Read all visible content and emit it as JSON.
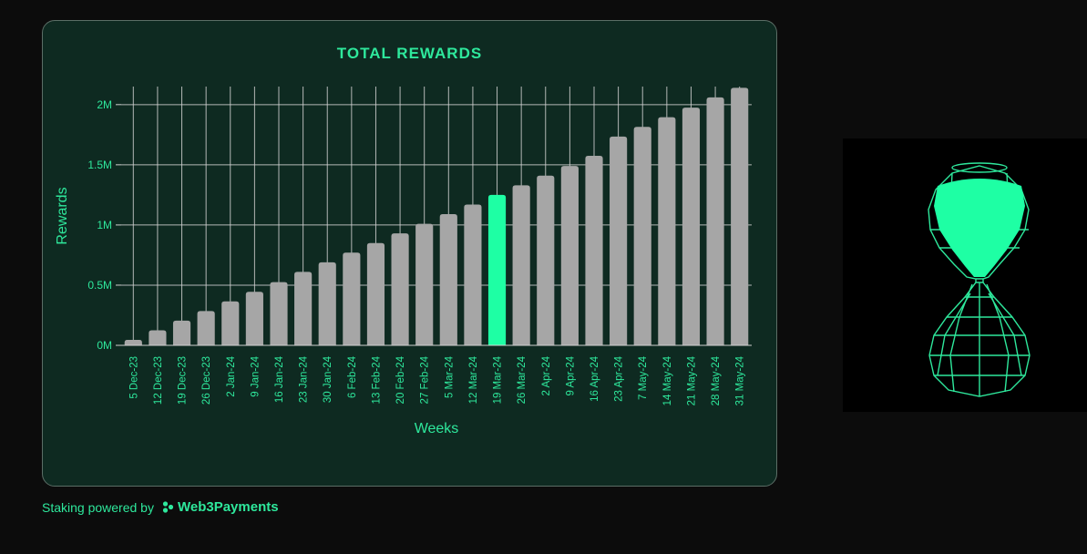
{
  "colors": {
    "accent": "#2ee89c",
    "bar": "#a6a6a6",
    "highlight_bar": "#1effa4",
    "card_bg": "#0e2a21",
    "page_bg": "#0c0c0c",
    "grid": "#d0d0d0"
  },
  "footer": {
    "powered_label": "Staking powered by",
    "brand_name": "Web3Payments",
    "brand_icon": "web3payments-logo-icon"
  },
  "illustration": {
    "icon": "hourglass-icon"
  },
  "chart_data": {
    "type": "bar",
    "title": "TOTAL REWARDS",
    "xlabel": "Weeks",
    "ylabel": "Rewards",
    "ylim": [
      0,
      2150000
    ],
    "yticks": [
      0,
      500000,
      1000000,
      1500000,
      2000000
    ],
    "ytick_labels": [
      "0M",
      "0.5M",
      "1M",
      "1.5M",
      "2M"
    ],
    "grid": true,
    "highlight_category": "19 Mar-24",
    "categories": [
      "5 Dec-23",
      "12 Dec-23",
      "19 Dec-23",
      "26 Dec-23",
      "2 Jan-24",
      "9 Jan-24",
      "16 Jan-24",
      "23 Jan-24",
      "30 Jan-24",
      "6 Feb-24",
      "13 Feb-24",
      "20 Feb-24",
      "27 Feb-24",
      "5 Mar-24",
      "12 Mar-24",
      "19 Mar-24",
      "26 Mar-24",
      "2 Apr-24",
      "9 Apr-24",
      "16 Apr-24",
      "23 Apr-24",
      "7 May-24",
      "14 May-24",
      "21 May-24",
      "28 May-24",
      "31 May-24"
    ],
    "values": [
      45000,
      125000,
      205000,
      285000,
      365000,
      445000,
      525000,
      610000,
      690000,
      770000,
      850000,
      930000,
      1010000,
      1090000,
      1170000,
      1250000,
      1330000,
      1410000,
      1490000,
      1575000,
      1735000,
      1815000,
      1895000,
      1975000,
      2060000,
      2140000
    ]
  }
}
